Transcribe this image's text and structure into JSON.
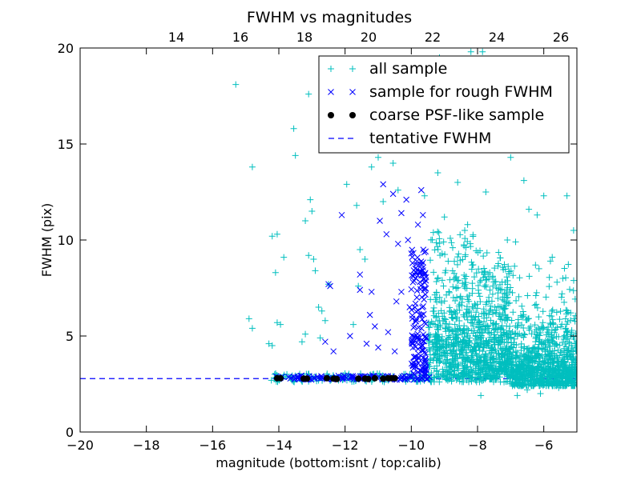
{
  "chart_data": {
    "type": "scatter",
    "title": "FWHM vs magnitudes",
    "xlabel": "magnitude (bottom:isnt / top:calib)",
    "ylabel": "FWHM (pix)",
    "xlim": [
      -20,
      -5
    ],
    "ylim": [
      0,
      20
    ],
    "x_ticks": [
      -20,
      -18,
      -16,
      -14,
      -12,
      -10,
      -8,
      -6
    ],
    "x_tick_labels": [
      "−20",
      "−18",
      "−16",
      "−14",
      "−12",
      "−10",
      "−8",
      "−6"
    ],
    "y_ticks": [
      0,
      5,
      10,
      15,
      20
    ],
    "y_tick_labels": [
      "0",
      "5",
      "10",
      "15",
      "20"
    ],
    "top_xlim": [
      11,
      26.5
    ],
    "top_ticks": [
      14,
      16,
      18,
      20,
      22,
      24,
      26
    ],
    "top_tick_labels": [
      "14",
      "16",
      "18",
      "20",
      "22",
      "24",
      "26"
    ],
    "grid": false,
    "legend_position": "top-right",
    "colors": {
      "all_sample": "#00bfbf",
      "rough_sample": "#0000ff",
      "psf_sample": "#000000",
      "tentative": "#0000ff"
    },
    "series": [
      {
        "name": "all sample",
        "marker": "plus",
        "color": "#00bfbf",
        "points": [
          [
            -15.3,
            18.1
          ],
          [
            -14.8,
            13.8
          ],
          [
            -14.9,
            5.9
          ],
          [
            -14.8,
            5.4
          ],
          [
            -14.2,
            10.2
          ],
          [
            -14.05,
            10.3
          ],
          [
            -14.1,
            8.3
          ],
          [
            -14.05,
            5.7
          ],
          [
            -14.2,
            4.5
          ],
          [
            -14.3,
            4.6
          ],
          [
            -13.95,
            5.6
          ],
          [
            -13.85,
            9.1
          ],
          [
            -13.55,
            15.8
          ],
          [
            -13.5,
            14.4
          ],
          [
            -13.2,
            11.0
          ],
          [
            -13.1,
            17.6
          ],
          [
            -13.05,
            12.1
          ],
          [
            -13.0,
            11.5
          ],
          [
            -13.1,
            9.2
          ],
          [
            -12.95,
            9.0
          ],
          [
            -12.9,
            8.4
          ],
          [
            -12.8,
            6.5
          ],
          [
            -12.7,
            6.3
          ],
          [
            -12.5,
            7.7
          ],
          [
            -13.2,
            5.1
          ],
          [
            -13.3,
            4.7
          ],
          [
            -12.6,
            5.8
          ],
          [
            -12.75,
            4.9
          ],
          [
            -11.95,
            12.9
          ],
          [
            -11.65,
            11.8
          ],
          [
            -11.55,
            9.5
          ],
          [
            -11.4,
            9.0
          ],
          [
            -11.6,
            7.6
          ],
          [
            -11.75,
            5.6
          ],
          [
            -11.2,
            13.8
          ],
          [
            -11.0,
            14.3
          ],
          [
            -10.8,
            15.3
          ],
          [
            -10.85,
            12.0
          ],
          [
            -10.55,
            14.0
          ],
          [
            -10.4,
            12.6
          ],
          [
            -10.0,
            17.0
          ],
          [
            -9.95,
            15.2
          ],
          [
            -9.6,
            12.3
          ],
          [
            -9.5,
            16.2
          ],
          [
            -9.15,
            19.5
          ],
          [
            -8.85,
            15.0
          ],
          [
            -8.6,
            13.0
          ],
          [
            -8.35,
            17.9
          ],
          [
            -8.2,
            19.8
          ],
          [
            -7.85,
            19.8
          ],
          [
            -7.5,
            16.4
          ],
          [
            -7.2,
            15.4
          ],
          [
            -7.0,
            14.3
          ],
          [
            -6.6,
            13.1
          ],
          [
            -6.45,
            11.6
          ],
          [
            -6.0,
            12.3
          ],
          [
            -5.3,
            12.3
          ],
          [
            -5.1,
            10.5
          ],
          [
            -6.2,
            11.3
          ],
          [
            -6.85,
            9.9
          ],
          [
            -6.25,
            8.7
          ],
          [
            -5.8,
            8.9
          ],
          [
            -5.6,
            7.8
          ],
          [
            -5.45,
            7.2
          ],
          [
            -5.05,
            4.6
          ],
          [
            -5.2,
            3.9
          ],
          [
            -5.0,
            3.1
          ],
          [
            -7.9,
            1.9
          ],
          [
            -7.2,
            2.6
          ],
          [
            -6.8,
            1.9
          ],
          [
            -6.5,
            2.2
          ],
          [
            -6.1,
            2.0
          ],
          [
            -5.55,
            2.3
          ],
          [
            -5.35,
            2.5
          ],
          [
            -9.2,
            13.5
          ],
          [
            -9.0,
            11.2
          ],
          [
            -8.75,
            9.6
          ],
          [
            -8.3,
            10.8
          ],
          [
            -7.75,
            12.5
          ],
          [
            -7.1,
            10.0
          ]
        ],
        "dense_region": {
          "x": [
            -9.5,
            -5.0
          ],
          "y": [
            2.2,
            9.5
          ]
        }
      },
      {
        "name": "sample for rough FWHM",
        "marker": "x",
        "color": "#0000ff",
        "points": [
          [
            -12.1,
            11.3
          ],
          [
            -11.55,
            8.2
          ],
          [
            -11.55,
            7.4
          ],
          [
            -11.25,
            6.1
          ],
          [
            -11.2,
            7.3
          ],
          [
            -11.0,
            4.4
          ],
          [
            -10.95,
            11.0
          ],
          [
            -10.85,
            12.9
          ],
          [
            -10.75,
            10.3
          ],
          [
            -10.55,
            12.4
          ],
          [
            -10.4,
            9.8
          ],
          [
            -10.3,
            11.4
          ],
          [
            -10.15,
            12.1
          ],
          [
            -10.1,
            10.0
          ],
          [
            -10.0,
            9.3
          ],
          [
            -9.95,
            7.8
          ],
          [
            -9.8,
            10.8
          ],
          [
            -9.7,
            12.6
          ],
          [
            -9.65,
            11.3
          ],
          [
            -9.6,
            8.2
          ],
          [
            -12.5,
            7.7
          ],
          [
            -12.45,
            7.6
          ],
          [
            -12.6,
            4.7
          ],
          [
            -12.35,
            4.2
          ],
          [
            -11.85,
            5.0
          ],
          [
            -11.35,
            4.6
          ],
          [
            -11.1,
            5.5
          ],
          [
            -10.7,
            5.2
          ],
          [
            -10.5,
            4.2
          ],
          [
            -10.45,
            6.8
          ],
          [
            -10.3,
            7.3
          ],
          [
            -10.05,
            6.5
          ],
          [
            -9.9,
            5.5
          ],
          [
            -9.75,
            6.1
          ],
          [
            -9.55,
            4.9
          ]
        ],
        "dense_region": {
          "x": [
            -10.0,
            -9.5
          ],
          "y": [
            3.0,
            9.0
          ]
        }
      },
      {
        "name": "coarse PSF-like sample",
        "marker": "dot",
        "color": "#000000",
        "points": [
          [
            -14.05,
            2.8
          ],
          [
            -13.95,
            2.8
          ],
          [
            -13.25,
            2.78
          ],
          [
            -13.15,
            2.78
          ],
          [
            -12.55,
            2.8
          ],
          [
            -12.35,
            2.78
          ],
          [
            -12.25,
            2.76
          ],
          [
            -11.6,
            2.78
          ],
          [
            -11.4,
            2.78
          ],
          [
            -11.3,
            2.76
          ],
          [
            -11.1,
            2.8
          ],
          [
            -10.85,
            2.78
          ],
          [
            -10.7,
            2.8
          ],
          [
            -10.6,
            2.8
          ],
          [
            -10.5,
            2.8
          ]
        ]
      },
      {
        "name": "tentative FWHM",
        "marker": "dashed-line",
        "color": "#0000ff",
        "value": 2.78
      }
    ]
  }
}
